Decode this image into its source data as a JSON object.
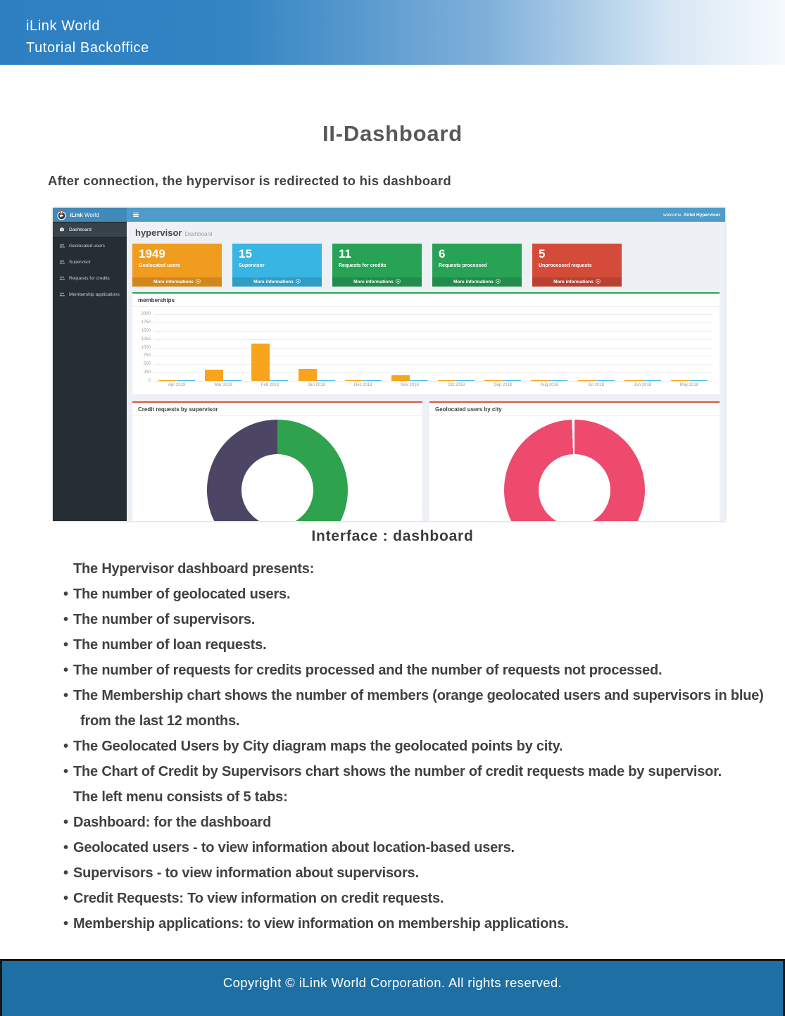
{
  "doc": {
    "header": {
      "line1": "iLink World",
      "line2": "Tutorial Backoffice"
    },
    "title": "II-Dashboard",
    "subtitle": "After connection, the hypervisor is redirected to his dashboard",
    "caption": "Interface : dashboard",
    "footer": "Copyright © iLink World Corporation. All rights reserved."
  },
  "colors": {
    "header_blue": "#2d7fc1",
    "topbar_blue": "#4f9cc9",
    "sidebar_dark": "#262e34",
    "footer_blue": "#1d6fa4",
    "panel_green_accent": "#27a756",
    "panel_red_accent": "#e2533c"
  },
  "screenshot": {
    "brand": {
      "bold": "iLink",
      "light": "World"
    },
    "topbar": {
      "welcome_prefix": "welcome",
      "welcome_user": "Airtel Hypervisor"
    },
    "sidebar": {
      "items": [
        {
          "label": "Dashboard",
          "icon": "gauge-icon",
          "active": true
        },
        {
          "label": "Geolocated users",
          "icon": "users-icon",
          "active": false
        },
        {
          "label": "Supervisor",
          "icon": "users-icon",
          "active": false
        },
        {
          "label": "Requests for credits",
          "icon": "users-icon",
          "active": false
        },
        {
          "label": "Membership applications",
          "icon": "users-icon",
          "active": false
        }
      ]
    },
    "heading": {
      "title": "hypervisor",
      "subtitle": "Dashboard"
    },
    "more_label": "More informations",
    "cards": [
      {
        "value": "1949",
        "label": "Geolocated users",
        "color": "#f09c1f"
      },
      {
        "value": "15",
        "label": "Supervisor",
        "color": "#38b5e2"
      },
      {
        "value": "11",
        "label": "Requests for credits",
        "color": "#28a355"
      },
      {
        "value": "6",
        "label": "Requests processed",
        "color": "#28a355"
      },
      {
        "value": "5",
        "label": "Unprocessed requests",
        "color": "#d54b39"
      }
    ]
  },
  "chart_data": [
    {
      "type": "bar",
      "title": "memberships",
      "categories": [
        "Apr 2019",
        "Mar 2019",
        "Feb 2019",
        "Jan 2019",
        "Dec 2018",
        "Nov 2018",
        "Oct 2018",
        "Sep 2018",
        "Aug 2018",
        "Jul 2018",
        "Jun 2018",
        "May 2018"
      ],
      "series": [
        {
          "name": "geolocated users",
          "color": "#f8a41d",
          "values": [
            15,
            330,
            1120,
            350,
            25,
            160,
            15,
            15,
            15,
            15,
            15,
            15
          ]
        },
        {
          "name": "supervisors",
          "color": "#4cb8e8",
          "values": [
            8,
            8,
            8,
            30,
            8,
            8,
            8,
            8,
            8,
            8,
            8,
            8
          ]
        }
      ],
      "ylim": [
        0,
        2000
      ],
      "yticks": [
        0,
        250,
        500,
        750,
        1000,
        1250,
        1500,
        1750,
        2000
      ],
      "grid": true,
      "legend": "none"
    },
    {
      "type": "pie",
      "title": "Credit requests by supervisor",
      "segments": [
        {
          "value": 50,
          "color": "#2ea24d"
        },
        {
          "value": 50,
          "color": "#4c4664"
        }
      ]
    },
    {
      "type": "pie",
      "title": "Geolocated users by city",
      "segments": [
        {
          "value": 99.4,
          "color": "#ee4a6e"
        },
        {
          "value": 0.6,
          "color": "#ffffff"
        }
      ]
    }
  ],
  "body": {
    "lines": [
      {
        "text": "The Hypervisor dashboard presents:",
        "bullet": false,
        "indent": false
      },
      {
        "text": "The number of geolocated users.",
        "bullet": true,
        "indent": false
      },
      {
        "text": "The number of supervisors.",
        "bullet": true,
        "indent": false
      },
      {
        "text": "The number of loan requests.",
        "bullet": true,
        "indent": false
      },
      {
        "text": "The number of requests for credits processed and the number of requests not processed.",
        "bullet": true,
        "indent": false
      },
      {
        "text": "The Membership chart shows the number of members (orange geolocated users and supervisors in blue)",
        "bullet": true,
        "indent": false
      },
      {
        "text": "from the last 12 months.",
        "bullet": false,
        "indent": true
      },
      {
        "text": "The Geolocated Users by City diagram maps the geolocated points by city.",
        "bullet": true,
        "indent": false
      },
      {
        "text": "The Chart of Credit by Supervisors chart shows the number of credit requests made by supervisor.",
        "bullet": true,
        "indent": false
      },
      {
        "text": "The left menu consists of 5 tabs:",
        "bullet": false,
        "indent": false
      },
      {
        "text": "Dashboard: for the dashboard",
        "bullet": true,
        "indent": false
      },
      {
        "text": "Geolocated users - to view information about location-based users.",
        "bullet": true,
        "indent": false
      },
      {
        "text": "Supervisors - to view information about supervisors.",
        "bullet": true,
        "indent": false
      },
      {
        "text": "Credit Requests: To view information on credit requests.",
        "bullet": true,
        "indent": false
      },
      {
        "text": "Membership applications: to view information on membership applications.",
        "bullet": true,
        "indent": false
      }
    ]
  }
}
